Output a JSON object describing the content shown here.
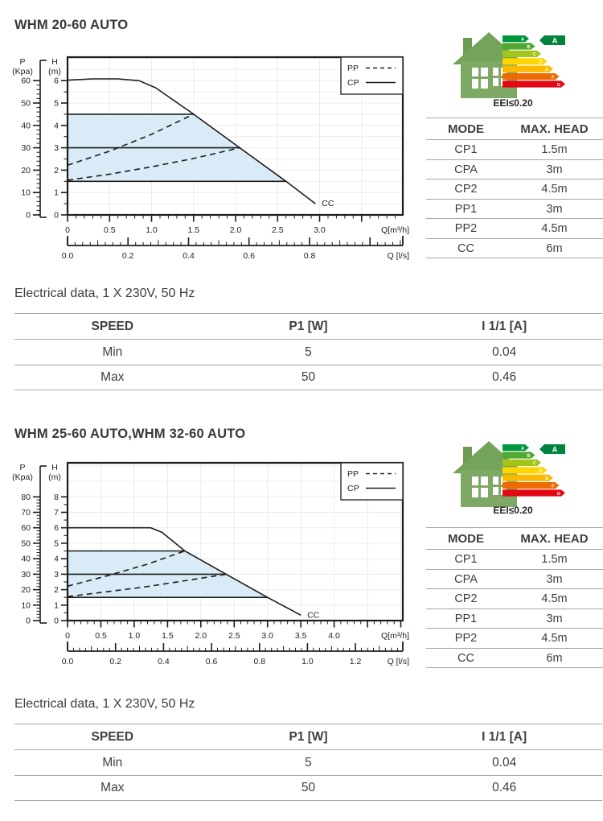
{
  "page": {
    "background": "#ffffff"
  },
  "sections": [
    {
      "title": "WHM 20-60 AUTO",
      "energy_label": {
        "badge": "A",
        "classes": [
          "A",
          "B",
          "C",
          "D",
          "E",
          "F",
          "G"
        ],
        "eei": "EEI≤0.20"
      },
      "mode_table": {
        "headers": [
          "MODE",
          "MAX. HEAD"
        ],
        "rows": [
          [
            "CP1",
            "1.5m"
          ],
          [
            "CPA",
            "3m"
          ],
          [
            "CP2",
            "4.5m"
          ],
          [
            "PP1",
            "3m"
          ],
          [
            "PP2",
            "4.5m"
          ],
          [
            "CC",
            "6m"
          ]
        ]
      },
      "electrical_caption": "Electrical data, 1 X 230V, 50 Hz",
      "electrical_table": {
        "headers": [
          "SPEED",
          "P1 [W]",
          "I 1/1 [A]"
        ],
        "rows": [
          [
            "Min",
            "5",
            "0.04"
          ],
          [
            "Max",
            "50",
            "0.46"
          ]
        ]
      },
      "chart_data": {
        "type": "line",
        "x_axis": {
          "label": "Q[m³/h]",
          "ticks": [
            0,
            0.5,
            1,
            1.5,
            2,
            2.5,
            3
          ],
          "xlim": [
            0,
            3.99
          ]
        },
        "x_axis2": {
          "label": "Q [l/s]",
          "ticks": [
            0,
            0.2,
            0.4,
            0.6,
            0.8
          ]
        },
        "y_axis_h": {
          "label_line1": "H",
          "label_line2": "(m)",
          "ticks": [
            0,
            1,
            2,
            3,
            4,
            5,
            6
          ],
          "ylim": [
            0,
            7.05
          ]
        },
        "y_axis_p": {
          "label_line1": "P",
          "label_line2": "(Kpa)",
          "ticks": [
            0,
            10,
            20,
            30,
            40,
            50,
            60
          ]
        },
        "legend": [
          {
            "label": "PP",
            "style": "dashed"
          },
          {
            "label": "CP",
            "style": "solid"
          }
        ],
        "grid": {
          "x_step": 0.5,
          "y_step": 0.5
        },
        "shade_color": "#d9ebf7",
        "shaded_region": [
          [
            0,
            4.5
          ],
          [
            1.5,
            4.5
          ],
          [
            2.05,
            3
          ],
          [
            2.6,
            1.5
          ],
          [
            0,
            1.5
          ]
        ],
        "series": [
          {
            "name": "CC-max-curve",
            "style": "solid",
            "end_label": "CC",
            "points": [
              [
                0,
                6.02
              ],
              [
                0.3,
                6.08
              ],
              [
                0.6,
                6.08
              ],
              [
                0.85,
                6.0
              ],
              [
                1.05,
                5.68
              ],
              [
                1.5,
                4.5
              ],
              [
                2.05,
                3.0
              ],
              [
                2.6,
                1.5
              ],
              [
                2.95,
                0.5
              ]
            ]
          },
          {
            "name": "CP2-limit-4.5m",
            "style": "solid",
            "points": [
              [
                0,
                4.5
              ],
              [
                1.5,
                4.5
              ]
            ]
          },
          {
            "name": "CPA-limit-3m",
            "style": "solid",
            "points": [
              [
                0,
                3
              ],
              [
                2.05,
                3
              ]
            ]
          },
          {
            "name": "CP1-limit-1.5m",
            "style": "solid",
            "points": [
              [
                0,
                1.5
              ],
              [
                2.6,
                1.5
              ]
            ]
          },
          {
            "name": "PP2",
            "style": "dashed",
            "points": [
              [
                0,
                2.22
              ],
              [
                0.5,
                2.85
              ],
              [
                1.0,
                3.6
              ],
              [
                1.5,
                4.5
              ]
            ]
          },
          {
            "name": "PP1",
            "style": "dashed",
            "points": [
              [
                0,
                1.55
              ],
              [
                0.5,
                1.82
              ],
              [
                1.0,
                2.15
              ],
              [
                1.5,
                2.52
              ],
              [
                2.05,
                3.0
              ]
            ]
          }
        ]
      }
    },
    {
      "title": "WHM 25-60 AUTO,WHM 32-60 AUTO",
      "energy_label": {
        "badge": "A",
        "classes": [
          "A",
          "B",
          "C",
          "D",
          "E",
          "F",
          "G"
        ],
        "eei": "EEI≤0.20"
      },
      "mode_table": {
        "headers": [
          "MODE",
          "MAX. HEAD"
        ],
        "rows": [
          [
            "CP1",
            "1.5m"
          ],
          [
            "CPA",
            "3m"
          ],
          [
            "CP2",
            "4.5m"
          ],
          [
            "PP1",
            "3m"
          ],
          [
            "PP2",
            "4.5m"
          ],
          [
            "CC",
            "6m"
          ]
        ]
      },
      "electrical_caption": "Electrical data, 1 X 230V, 50 Hz",
      "electrical_table": {
        "headers": [
          "SPEED",
          "P1 [W]",
          "I 1/1 [A]"
        ],
        "rows": [
          [
            "Min",
            "5",
            "0.04"
          ],
          [
            "Max",
            "50",
            "0.46"
          ]
        ]
      },
      "chart_data": {
        "type": "line",
        "x_axis": {
          "label": "Q[m³/h]",
          "ticks": [
            0,
            0.5,
            1,
            1.5,
            2,
            2.5,
            3,
            3.5,
            4
          ],
          "xlim": [
            0,
            5.03
          ]
        },
        "x_axis2": {
          "label": "Q [l/s]",
          "ticks": [
            0,
            0.2,
            0.4,
            0.6,
            0.8,
            1.0,
            1.2
          ]
        },
        "y_axis_h": {
          "label_line1": "H",
          "label_line2": "(m)",
          "ticks": [
            0,
            1,
            2,
            3,
            4,
            5,
            6,
            7,
            8
          ],
          "ylim": [
            0,
            10.2
          ]
        },
        "y_axis_p": {
          "label_line1": "P",
          "label_line2": "(Kpa)",
          "ticks": [
            0,
            10,
            20,
            30,
            40,
            50,
            60,
            70,
            80
          ]
        },
        "legend": [
          {
            "label": "PP",
            "style": "dashed"
          },
          {
            "label": "CP",
            "style": "solid"
          }
        ],
        "grid": {
          "x_step": 0.5,
          "y_step": 1
        },
        "shade_color": "#d9ebf7",
        "shaded_region": [
          [
            0,
            4.5
          ],
          [
            1.76,
            4.5
          ],
          [
            2.38,
            3
          ],
          [
            3.0,
            1.5
          ],
          [
            0,
            1.5
          ]
        ],
        "series": [
          {
            "name": "CC-max-curve",
            "style": "solid",
            "end_label": "CC",
            "points": [
              [
                0,
                6.0
              ],
              [
                0.7,
                6.0
              ],
              [
                1.25,
                6.0
              ],
              [
                1.42,
                5.7
              ],
              [
                1.76,
                4.5
              ],
              [
                2.38,
                3.0
              ],
              [
                3.0,
                1.5
              ],
              [
                3.5,
                0.35
              ]
            ]
          },
          {
            "name": "CP2-limit-4.5m",
            "style": "solid",
            "points": [
              [
                0,
                4.5
              ],
              [
                1.76,
                4.5
              ]
            ]
          },
          {
            "name": "CPA-limit-3m",
            "style": "solid",
            "points": [
              [
                0,
                3
              ],
              [
                2.38,
                3
              ]
            ]
          },
          {
            "name": "CP1-limit-1.5m",
            "style": "solid",
            "points": [
              [
                0,
                1.5
              ],
              [
                3.0,
                1.5
              ]
            ]
          },
          {
            "name": "PP2",
            "style": "dashed",
            "points": [
              [
                0,
                2.22
              ],
              [
                0.6,
                2.9
              ],
              [
                1.2,
                3.65
              ],
              [
                1.76,
                4.5
              ]
            ]
          },
          {
            "name": "PP1",
            "style": "dashed",
            "points": [
              [
                0,
                1.55
              ],
              [
                0.6,
                1.87
              ],
              [
                1.2,
                2.2
              ],
              [
                1.8,
                2.6
              ],
              [
                2.38,
                3.0
              ]
            ]
          }
        ]
      }
    }
  ],
  "energy_colors": [
    "#009640",
    "#50a833",
    "#a2c517",
    "#ffd500",
    "#fbba00",
    "#ec6b05",
    "#e30613"
  ],
  "badge_color": "#00843d"
}
